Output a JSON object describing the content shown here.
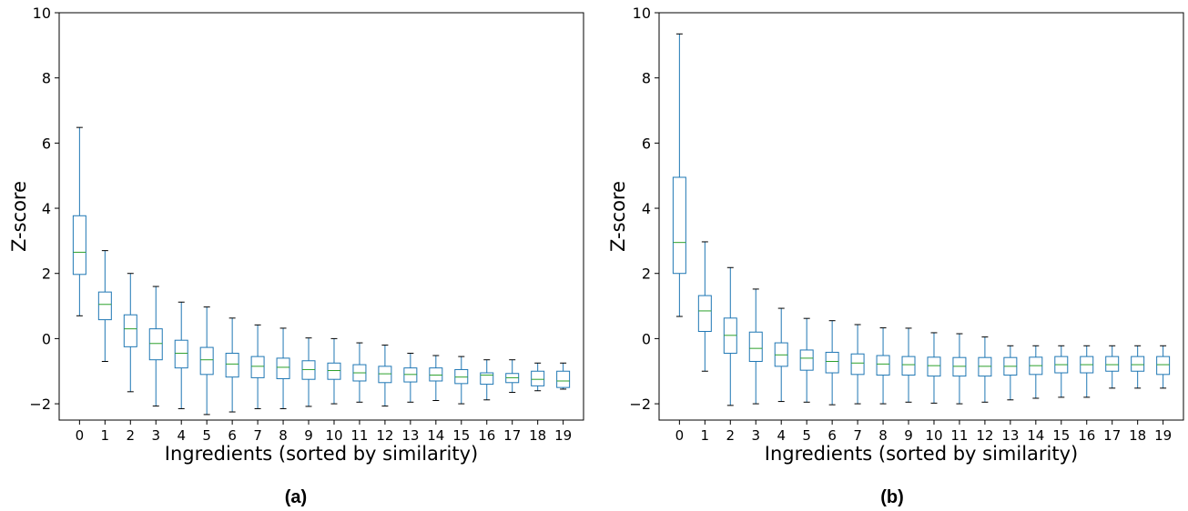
{
  "chart_data": [
    {
      "type": "box",
      "caption": "(a)",
      "xlabel": "Ingredients (sorted by similarity)",
      "ylabel": "Z-score",
      "ylim": [
        -2.5,
        10
      ],
      "yticks": [
        -2,
        0,
        2,
        4,
        6,
        8,
        10
      ],
      "categories": [
        "0",
        "1",
        "2",
        "3",
        "4",
        "5",
        "6",
        "7",
        "8",
        "9",
        "10",
        "11",
        "12",
        "13",
        "14",
        "15",
        "16",
        "17",
        "18",
        "19"
      ],
      "box_color": "#1f77b4",
      "median_color": "#2ca02c",
      "boxes": [
        {
          "whislo": 0.7,
          "q1": 1.97,
          "med": 2.65,
          "q3": 3.77,
          "whishi": 6.48
        },
        {
          "whislo": -0.7,
          "q1": 0.58,
          "med": 1.05,
          "q3": 1.43,
          "whishi": 2.7
        },
        {
          "whislo": -1.63,
          "q1": -0.25,
          "med": 0.3,
          "q3": 0.73,
          "whishi": 2.0
        },
        {
          "whislo": -2.07,
          "q1": -0.65,
          "med": -0.15,
          "q3": 0.3,
          "whishi": 1.6
        },
        {
          "whislo": -2.15,
          "q1": -0.9,
          "med": -0.45,
          "q3": -0.05,
          "whishi": 1.12
        },
        {
          "whislo": -2.33,
          "q1": -1.1,
          "med": -0.65,
          "q3": -0.27,
          "whishi": 0.97
        },
        {
          "whislo": -2.25,
          "q1": -1.18,
          "med": -0.78,
          "q3": -0.45,
          "whishi": 0.63
        },
        {
          "whislo": -2.15,
          "q1": -1.2,
          "med": -0.85,
          "q3": -0.55,
          "whishi": 0.42
        },
        {
          "whislo": -2.15,
          "q1": -1.23,
          "med": -0.88,
          "q3": -0.6,
          "whishi": 0.32
        },
        {
          "whislo": -2.08,
          "q1": -1.25,
          "med": -0.95,
          "q3": -0.68,
          "whishi": 0.02
        },
        {
          "whislo": -2.0,
          "q1": -1.25,
          "med": -0.98,
          "q3": -0.75,
          "whishi": 0.0
        },
        {
          "whislo": -1.95,
          "q1": -1.3,
          "med": -1.05,
          "q3": -0.8,
          "whishi": -0.13
        },
        {
          "whislo": -2.07,
          "q1": -1.35,
          "med": -1.08,
          "q3": -0.85,
          "whishi": -0.2
        },
        {
          "whislo": -1.95,
          "q1": -1.33,
          "med": -1.1,
          "q3": -0.9,
          "whishi": -0.45
        },
        {
          "whislo": -1.9,
          "q1": -1.3,
          "med": -1.12,
          "q3": -0.9,
          "whishi": -0.52
        },
        {
          "whislo": -2.0,
          "q1": -1.38,
          "med": -1.18,
          "q3": -0.95,
          "whishi": -0.55
        },
        {
          "whislo": -1.88,
          "q1": -1.4,
          "med": -1.12,
          "q3": -1.05,
          "whishi": -0.65
        },
        {
          "whislo": -1.65,
          "q1": -1.35,
          "med": -1.2,
          "q3": -1.07,
          "whishi": -0.65
        },
        {
          "whislo": -1.6,
          "q1": -1.45,
          "med": -1.25,
          "q3": -1.0,
          "whishi": -0.75
        },
        {
          "whislo": -1.55,
          "q1": -1.5,
          "med": -1.3,
          "q3": -1.0,
          "whishi": -0.75
        }
      ]
    },
    {
      "type": "box",
      "caption": "(b)",
      "xlabel": "Ingredients (sorted by similarity)",
      "ylabel": "Z-score",
      "ylim": [
        -2.5,
        10
      ],
      "yticks": [
        -2,
        0,
        2,
        4,
        6,
        8,
        10
      ],
      "categories": [
        "0",
        "1",
        "2",
        "3",
        "4",
        "5",
        "6",
        "7",
        "8",
        "9",
        "10",
        "11",
        "12",
        "13",
        "14",
        "15",
        "16",
        "17",
        "18",
        "19"
      ],
      "box_color": "#1f77b4",
      "median_color": "#2ca02c",
      "boxes": [
        {
          "whislo": 0.68,
          "q1": 2.0,
          "med": 2.95,
          "q3": 4.95,
          "whishi": 9.35
        },
        {
          "whislo": -1.0,
          "q1": 0.22,
          "med": 0.85,
          "q3": 1.32,
          "whishi": 2.97
        },
        {
          "whislo": -2.05,
          "q1": -0.45,
          "med": 0.1,
          "q3": 0.63,
          "whishi": 2.18
        },
        {
          "whislo": -2.0,
          "q1": -0.7,
          "med": -0.3,
          "q3": 0.2,
          "whishi": 1.52
        },
        {
          "whislo": -1.93,
          "q1": -0.85,
          "med": -0.5,
          "q3": -0.13,
          "whishi": 0.93
        },
        {
          "whislo": -1.95,
          "q1": -0.97,
          "med": -0.6,
          "q3": -0.35,
          "whishi": 0.62
        },
        {
          "whislo": -2.03,
          "q1": -1.05,
          "med": -0.7,
          "q3": -0.42,
          "whishi": 0.55
        },
        {
          "whislo": -2.0,
          "q1": -1.1,
          "med": -0.75,
          "q3": -0.47,
          "whishi": 0.43
        },
        {
          "whislo": -2.0,
          "q1": -1.12,
          "med": -0.78,
          "q3": -0.52,
          "whishi": 0.33
        },
        {
          "whislo": -1.95,
          "q1": -1.12,
          "med": -0.8,
          "q3": -0.55,
          "whishi": 0.32
        },
        {
          "whislo": -1.98,
          "q1": -1.15,
          "med": -0.83,
          "q3": -0.57,
          "whishi": 0.18
        },
        {
          "whislo": -2.0,
          "q1": -1.15,
          "med": -0.85,
          "q3": -0.58,
          "whishi": 0.15
        },
        {
          "whislo": -1.95,
          "q1": -1.15,
          "med": -0.85,
          "q3": -0.58,
          "whishi": 0.05
        },
        {
          "whislo": -1.88,
          "q1": -1.12,
          "med": -0.85,
          "q3": -0.58,
          "whishi": -0.22
        },
        {
          "whislo": -1.83,
          "q1": -1.1,
          "med": -0.83,
          "q3": -0.57,
          "whishi": -0.22
        },
        {
          "whislo": -1.8,
          "q1": -1.05,
          "med": -0.8,
          "q3": -0.55,
          "whishi": -0.22
        },
        {
          "whislo": -1.8,
          "q1": -1.05,
          "med": -0.8,
          "q3": -0.55,
          "whishi": -0.22
        },
        {
          "whislo": -1.52,
          "q1": -1.0,
          "med": -0.8,
          "q3": -0.55,
          "whishi": -0.22
        },
        {
          "whislo": -1.52,
          "q1": -1.0,
          "med": -0.8,
          "q3": -0.55,
          "whishi": -0.22
        },
        {
          "whislo": -1.52,
          "q1": -1.1,
          "med": -0.8,
          "q3": -0.55,
          "whishi": -0.22
        }
      ]
    }
  ]
}
